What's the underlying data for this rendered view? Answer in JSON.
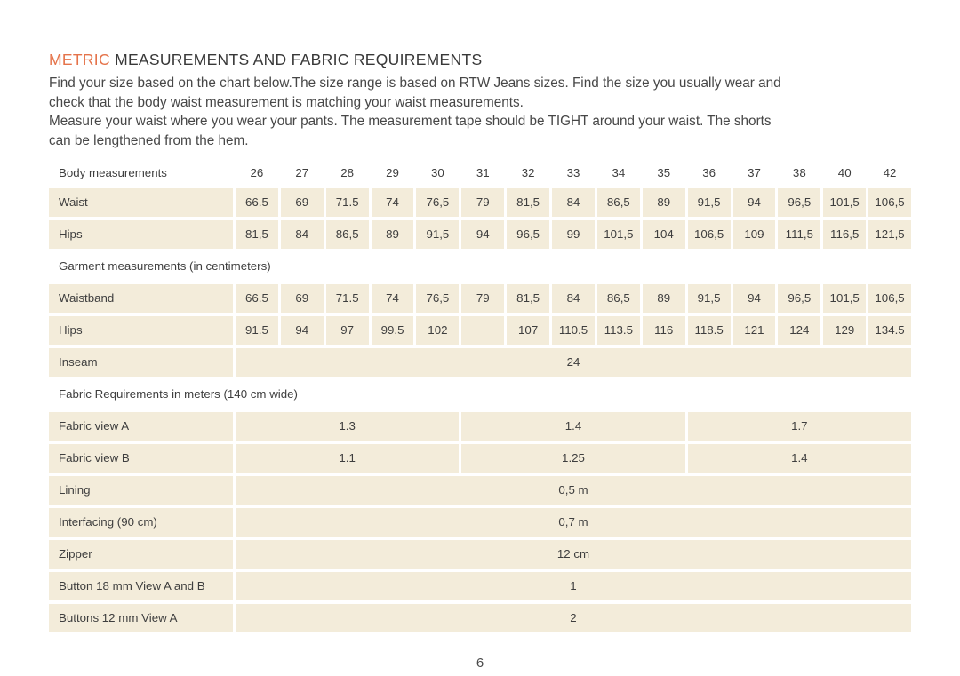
{
  "document": {
    "title": {
      "highlight": "METRIC",
      "rest": "MEASUREMENTS AND FABRIC REQUIREMENTS"
    },
    "intro_lines": [
      "Find your size based on the chart below.The size range is based on RTW Jeans sizes. Find the size you usually wear and",
      "check that the body waist measurement is matching your waist measurements.",
      "Measure your waist where you wear your pants. The measurement tape should be TIGHT around your waist. The shorts",
      "can be lengthened from the hem."
    ],
    "page_number": "6"
  },
  "colors": {
    "accent": "#e5734a",
    "cell_background": "#f3ecda",
    "text": "#3e3e3e"
  },
  "table": {
    "body_header_label": "Body measurements",
    "sizes": [
      "26",
      "27",
      "28",
      "29",
      "30",
      "31",
      "32",
      "33",
      "34",
      "35",
      "36",
      "37",
      "38",
      "40",
      "42"
    ],
    "body_rows": [
      {
        "label": "Waist",
        "values": [
          "66.5",
          "69",
          "71.5",
          "74",
          "76,5",
          "79",
          "81,5",
          "84",
          "86,5",
          "89",
          "91,5",
          "94",
          "96,5",
          "101,5",
          "106,5"
        ]
      },
      {
        "label": "Hips",
        "values": [
          "81,5",
          "84",
          "86,5",
          "89",
          "91,5",
          "94",
          "96,5",
          "99",
          "101,5",
          "104",
          "106,5",
          "109",
          "111,5",
          "116,5",
          "121,5"
        ]
      }
    ],
    "garment_section_label": "Garment measurements (in centimeters)",
    "garment_rows": [
      {
        "label": "Waistband",
        "values": [
          "66.5",
          "69",
          "71.5",
          "74",
          "76,5",
          "79",
          "81,5",
          "84",
          "86,5",
          "89",
          "91,5",
          "94",
          "96,5",
          "101,5",
          "106,5"
        ]
      },
      {
        "label": "Hips",
        "values": [
          "91.5",
          "94",
          "97",
          "99.5",
          "102",
          "",
          "107",
          "110.5",
          "113.5",
          "116",
          "118.5",
          "121",
          "124",
          "129",
          "134.5"
        ]
      }
    ],
    "inseam_row": {
      "label": "Inseam",
      "value": "24"
    },
    "fabric_section_label": "Fabric Requirements in meters (140 cm wide)",
    "fabric_rows": [
      {
        "label": "Fabric view A",
        "groups": [
          "1.3",
          "1.4",
          "1.7"
        ]
      },
      {
        "label": "Fabric view B",
        "groups": [
          "1.1",
          "1.25",
          "1.4"
        ]
      }
    ],
    "notion_rows": [
      {
        "label": "Lining",
        "value": "0,5 m"
      },
      {
        "label": "Interfacing (90 cm)",
        "value": "0,7 m"
      },
      {
        "label": "Zipper",
        "value": "12 cm"
      },
      {
        "label": "Button 18 mm View A and B",
        "value": "1"
      },
      {
        "label": "Buttons 12 mm View A",
        "value": "2"
      }
    ]
  }
}
